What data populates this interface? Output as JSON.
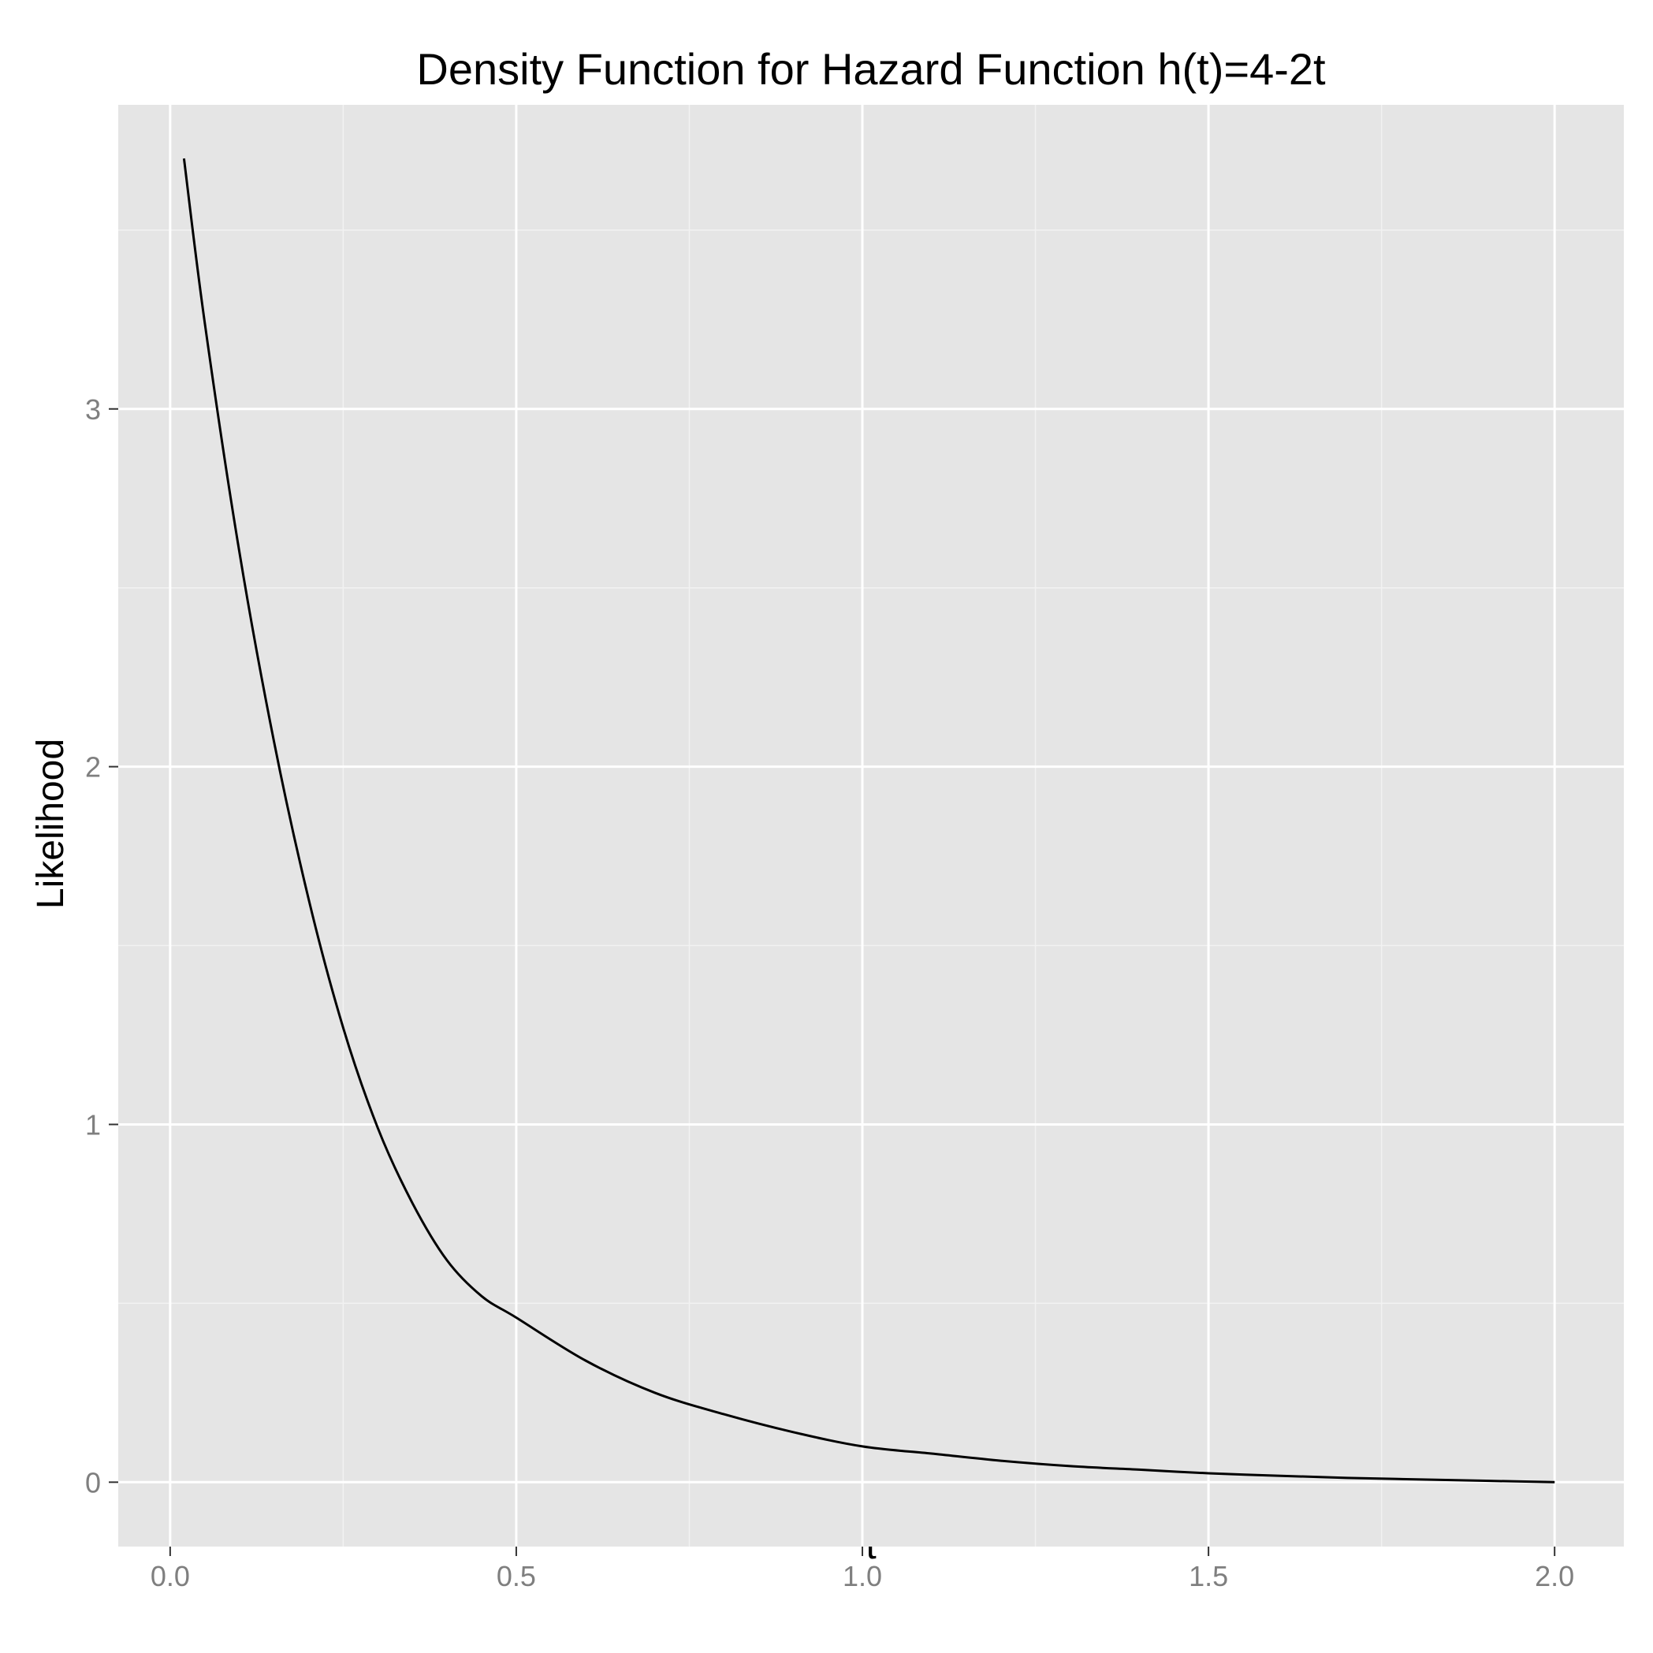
{
  "chart_data": {
    "type": "line",
    "title": "Density Function for Hazard Function h(t)=4-2t",
    "xlabel": "t",
    "ylabel": "Likelihood",
    "xlim": [
      -0.075,
      2.1
    ],
    "ylim": [
      -0.18,
      3.85
    ],
    "xticks": [
      0.0,
      0.5,
      1.0,
      1.5,
      2.0
    ],
    "xtick_labels": [
      "0.0",
      "0.5",
      "1.0",
      "1.5",
      "2.0"
    ],
    "yticks": [
      0,
      1,
      2,
      3
    ],
    "ytick_labels": [
      "0",
      "1",
      "2",
      "3"
    ],
    "grid": true,
    "legend": "none",
    "series": [
      {
        "color": "#000000",
        "x": [
          0.02,
          0.05,
          0.1,
          0.15,
          0.2,
          0.25,
          0.3,
          0.35,
          0.4,
          0.45,
          0.5,
          0.6,
          0.7,
          0.8,
          0.9,
          1.0,
          1.1,
          1.2,
          1.3,
          1.4,
          1.5,
          1.6,
          1.7,
          1.8,
          1.9,
          2.0
        ],
        "y": [
          3.7,
          3.24,
          2.6,
          2.07,
          1.63,
          1.27,
          0.99,
          0.78,
          0.62,
          0.52,
          0.46,
          0.34,
          0.25,
          0.19,
          0.14,
          0.1,
          0.08,
          0.06,
          0.045,
          0.035,
          0.025,
          0.018,
          0.012,
          0.008,
          0.004,
          0.0
        ]
      }
    ]
  },
  "colors": {
    "panel_background": "#e5e5e5",
    "grid_major": "#ffffff",
    "grid_minor": "#f2f2f2",
    "tick_text": "#7f7f7f",
    "line": "#000000"
  }
}
